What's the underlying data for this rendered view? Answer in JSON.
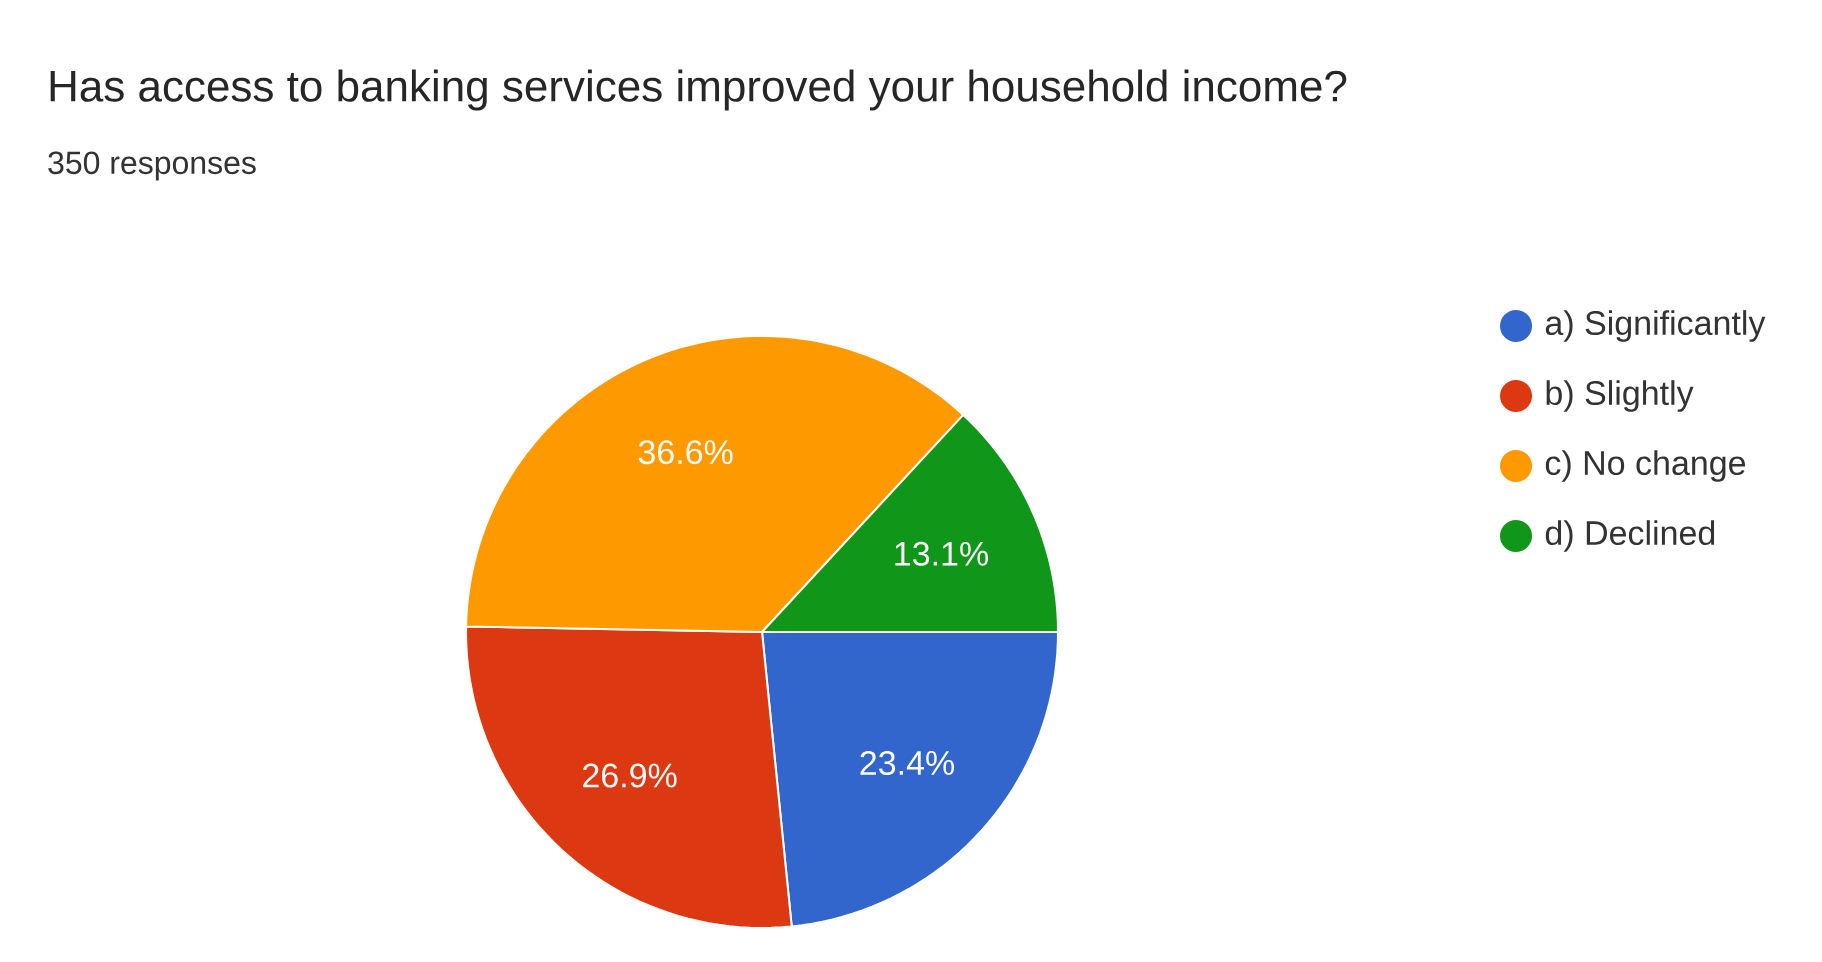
{
  "chart_data": {
    "type": "pie",
    "title": "Has access to banking services improved your household income?",
    "subtitle": "350 responses",
    "categories": [
      "a) Significantly",
      "b) Slightly",
      "c) No change",
      "d) Declined"
    ],
    "values": [
      23.4,
      26.9,
      36.6,
      13.1
    ],
    "colors": [
      "#3366cc",
      "#dc3912",
      "#ff9900",
      "#109618"
    ],
    "value_labels": [
      "23.4%",
      "26.9%",
      "36.6%",
      "13.1%"
    ],
    "legend": "top right"
  }
}
